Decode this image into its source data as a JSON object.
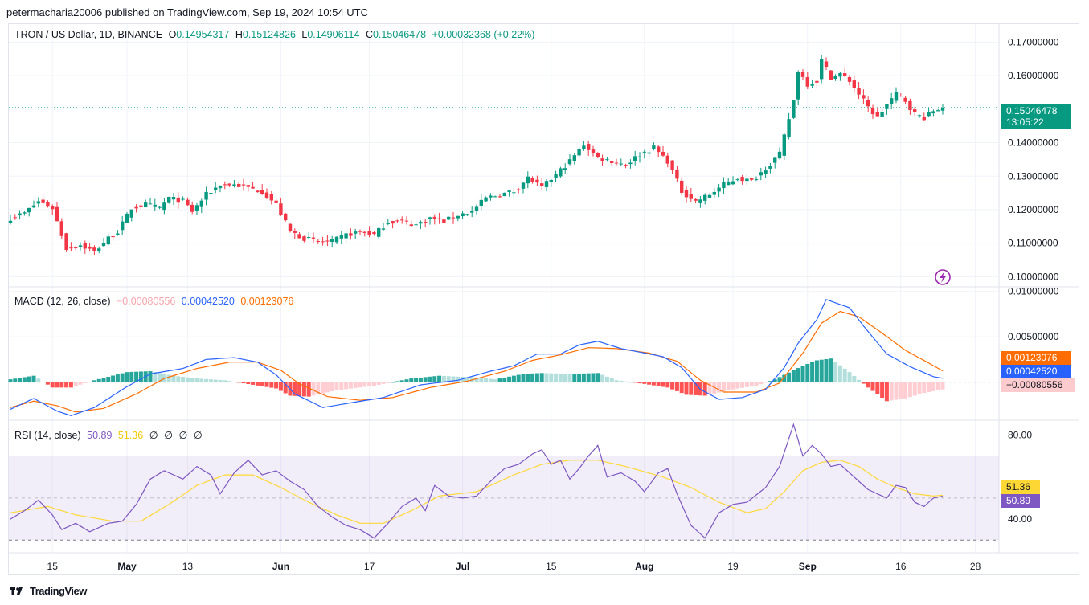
{
  "header": {
    "published": "petermacharia20006 published on TradingView.com, Sep 19, 2024 10:54 UTC"
  },
  "price_legend": {
    "symbol": "TRON / US Dollar, 1D, BINANCE",
    "o_label": "O",
    "o_value": "0.14954317",
    "h_label": "H",
    "h_value": "0.15124826",
    "l_label": "L",
    "l_value": "0.14906114",
    "c_label": "C",
    "c_value": "0.15046478",
    "change": "+0.00032368 (+0.22%)"
  },
  "macd_legend": {
    "title": "MACD (12, 26, close)",
    "hist": "−0.00080556",
    "macd": "0.00042520",
    "signal": "0.00123076"
  },
  "rsi_legend": {
    "title": "RSI (14, close)",
    "rsi": "50.89",
    "ma": "51.36",
    "extras": [
      "∅",
      "∅",
      "∅",
      "∅"
    ]
  },
  "current_price": {
    "value": "0.15046478",
    "countdown": "13:05:22"
  },
  "footer": {
    "brand": "TradingView"
  },
  "colors": {
    "up": "#089981",
    "down": "#f23645",
    "macd": "#2962ff",
    "signal": "#ff6d00",
    "rsi": "#7e57c2",
    "rsi_ma": "#fdd835"
  },
  "chart_data": [
    {
      "type": "candlestick",
      "title": "TRON / US Dollar, 1D, BINANCE",
      "ylim": [
        0.097,
        0.172
      ],
      "yticks": [
        "0.17000000",
        "0.16000000",
        "0.14000000",
        "0.13000000",
        "0.12000000",
        "0.11000000",
        "0.10000000"
      ],
      "ytick_values": [
        0.17,
        0.16,
        0.14,
        0.13,
        0.12,
        0.11,
        0.1
      ],
      "xticks": [
        "15",
        "May",
        "13",
        "Jun",
        "17",
        "Jul",
        "15",
        "Aug",
        "19",
        "Sep",
        "16",
        "28"
      ],
      "start_date": "2024-04-06",
      "close_anchors": [
        [
          0,
          0.1175
        ],
        [
          3,
          0.119
        ],
        [
          6,
          0.1225
        ],
        [
          9,
          0.1205
        ],
        [
          12,
          0.1085
        ],
        [
          15,
          0.1095
        ],
        [
          18,
          0.1075
        ],
        [
          21,
          0.1115
        ],
        [
          23,
          0.1135
        ],
        [
          26,
          0.1205
        ],
        [
          29,
          0.1215
        ],
        [
          32,
          0.1205
        ],
        [
          34,
          0.1235
        ],
        [
          37,
          0.1225
        ],
        [
          39,
          0.1195
        ],
        [
          42,
          0.1245
        ],
        [
          45,
          0.1275
        ],
        [
          48,
          0.1275
        ],
        [
          51,
          0.1265
        ],
        [
          54,
          0.1255
        ],
        [
          57,
          0.1215
        ],
        [
          60,
          0.1135
        ],
        [
          63,
          0.1115
        ],
        [
          66,
          0.1105
        ],
        [
          69,
          0.1105
        ],
        [
          72,
          0.1125
        ],
        [
          75,
          0.1135
        ],
        [
          78,
          0.1125
        ],
        [
          81,
          0.1165
        ],
        [
          84,
          0.1165
        ],
        [
          87,
          0.1155
        ],
        [
          90,
          0.1175
        ],
        [
          93,
          0.1165
        ],
        [
          96,
          0.1185
        ],
        [
          99,
          0.1195
        ],
        [
          102,
          0.1235
        ],
        [
          105,
          0.1245
        ],
        [
          108,
          0.1255
        ],
        [
          111,
          0.1295
        ],
        [
          114,
          0.1265
        ],
        [
          117,
          0.1305
        ],
        [
          120,
          0.1345
        ],
        [
          123,
          0.1395
        ],
        [
          126,
          0.1355
        ],
        [
          129,
          0.1345
        ],
        [
          132,
          0.1335
        ],
        [
          135,
          0.1365
        ],
        [
          138,
          0.1385
        ],
        [
          141,
          0.1345
        ],
        [
          144,
          0.1255
        ],
        [
          147,
          0.1225
        ],
        [
          150,
          0.1245
        ],
        [
          153,
          0.1275
        ],
        [
          156,
          0.1295
        ],
        [
          159,
          0.1285
        ],
        [
          162,
          0.1325
        ],
        [
          165,
          0.1365
        ],
        [
          168,
          0.1525
        ],
        [
          169,
          0.1615
        ],
        [
          171,
          0.1575
        ],
        [
          173,
          0.1585
        ],
        [
          174,
          0.1645
        ],
        [
          176,
          0.1595
        ],
        [
          178,
          0.1605
        ],
        [
          180,
          0.1585
        ],
        [
          182,
          0.1545
        ],
        [
          184,
          0.1505
        ],
        [
          186,
          0.1475
        ],
        [
          188,
          0.1515
        ],
        [
          190,
          0.1545
        ],
        [
          192,
          0.1525
        ],
        [
          194,
          0.1485
        ],
        [
          196,
          0.1475
        ],
        [
          198,
          0.1495
        ],
        [
          200,
          0.15046478
        ]
      ]
    },
    {
      "type": "macd",
      "title": "MACD (12, 26, close)",
      "ylim": [
        -0.0042,
        0.0105
      ],
      "yticks": [
        "0.01000000",
        "0.00500000"
      ],
      "ytick_values": [
        0.01,
        0.005
      ],
      "macd_anchors": [
        [
          0,
          -0.003
        ],
        [
          5,
          -0.0018
        ],
        [
          10,
          -0.0032
        ],
        [
          13,
          -0.0037
        ],
        [
          18,
          -0.0028
        ],
        [
          25,
          -0.0005
        ],
        [
          30,
          0.0009
        ],
        [
          37,
          0.0015
        ],
        [
          42,
          0.0025
        ],
        [
          48,
          0.0027
        ],
        [
          53,
          0.0022
        ],
        [
          57,
          0.0008
        ],
        [
          61,
          -0.0013
        ],
        [
          67,
          -0.0028
        ],
        [
          74,
          -0.0022
        ],
        [
          80,
          -0.0017
        ],
        [
          88,
          -0.0003
        ],
        [
          96,
          0.0002
        ],
        [
          103,
          0.0012
        ],
        [
          108,
          0.0018
        ],
        [
          113,
          0.0031
        ],
        [
          118,
          0.0031
        ],
        [
          122,
          0.0041
        ],
        [
          126,
          0.0045
        ],
        [
          131,
          0.0037
        ],
        [
          136,
          0.0032
        ],
        [
          140,
          0.0028
        ],
        [
          144,
          0.0016
        ],
        [
          148,
          -0.0008
        ],
        [
          152,
          -0.0019
        ],
        [
          157,
          -0.0017
        ],
        [
          162,
          -0.0008
        ],
        [
          166,
          0.0016
        ],
        [
          169,
          0.0043
        ],
        [
          173,
          0.0069
        ],
        [
          175,
          0.0091
        ],
        [
          180,
          0.0082
        ],
        [
          183,
          0.0062
        ],
        [
          188,
          0.0031
        ],
        [
          193,
          0.0017
        ],
        [
          198,
          0.0006
        ],
        [
          200,
          0.0004252
        ]
      ],
      "signal_anchors": [
        [
          0,
          -0.0028
        ],
        [
          5,
          -0.0021
        ],
        [
          10,
          -0.0026
        ],
        [
          14,
          -0.0033
        ],
        [
          20,
          -0.0029
        ],
        [
          27,
          -0.0013
        ],
        [
          33,
          0.0004
        ],
        [
          40,
          0.0015
        ],
        [
          47,
          0.0022
        ],
        [
          53,
          0.0022
        ],
        [
          58,
          0.0013
        ],
        [
          62,
          -0.0002
        ],
        [
          68,
          -0.0016
        ],
        [
          75,
          -0.002
        ],
        [
          82,
          -0.0017
        ],
        [
          90,
          -0.0006
        ],
        [
          98,
          0.0001
        ],
        [
          106,
          0.0012
        ],
        [
          112,
          0.0024
        ],
        [
          118,
          0.003
        ],
        [
          124,
          0.0038
        ],
        [
          130,
          0.0037
        ],
        [
          137,
          0.0032
        ],
        [
          143,
          0.0023
        ],
        [
          148,
          0.0002
        ],
        [
          153,
          -0.0011
        ],
        [
          160,
          -0.0011
        ],
        [
          165,
          -0.0001
        ],
        [
          170,
          0.0032
        ],
        [
          174,
          0.0065
        ],
        [
          178,
          0.0078
        ],
        [
          182,
          0.0072
        ],
        [
          187,
          0.0054
        ],
        [
          192,
          0.0035
        ],
        [
          197,
          0.0021
        ],
        [
          200,
          0.00123076
        ]
      ],
      "hist_anchors": [
        [
          0,
          0.0003
        ],
        [
          5,
          0.0007
        ],
        [
          9,
          -0.0006
        ],
        [
          13,
          -0.0006
        ],
        [
          18,
          0.0002
        ],
        [
          25,
          0.0011
        ],
        [
          30,
          0.0012
        ],
        [
          35,
          0.0007
        ],
        [
          40,
          0.0004
        ],
        [
          46,
          0.0002
        ],
        [
          52,
          -0.0003
        ],
        [
          57,
          -0.0007
        ],
        [
          60,
          -0.0015
        ],
        [
          64,
          -0.0016
        ],
        [
          70,
          -0.0009
        ],
        [
          78,
          -0.0004
        ],
        [
          86,
          0.0004
        ],
        [
          92,
          0.0007
        ],
        [
          100,
          0.0005
        ],
        [
          104,
          0.0003
        ],
        [
          110,
          0.0009
        ],
        [
          114,
          0.001
        ],
        [
          120,
          0.0009
        ],
        [
          126,
          0.001
        ],
        [
          130,
          0.0002
        ],
        [
          136,
          -0.0002
        ],
        [
          141,
          -0.0006
        ],
        [
          145,
          -0.0014
        ],
        [
          149,
          -0.0015
        ],
        [
          155,
          -0.0008
        ],
        [
          160,
          -0.0004
        ],
        [
          164,
          0.0003
        ],
        [
          170,
          0.0018
        ],
        [
          173,
          0.0024
        ],
        [
          176,
          0.0026
        ],
        [
          180,
          0.0011
        ],
        [
          184,
          -0.0006
        ],
        [
          188,
          -0.0021
        ],
        [
          192,
          -0.0018
        ],
        [
          196,
          -0.0012
        ],
        [
          200,
          -0.00080556
        ]
      ]
    },
    {
      "type": "rsi",
      "title": "RSI (14, close)",
      "ylim": [
        24,
        87
      ],
      "bands": [
        70,
        30
      ],
      "midline": 50,
      "yticks": [
        "80.00",
        "40.00"
      ],
      "ytick_values": [
        80,
        40
      ],
      "rsi_anchors": [
        [
          0,
          40
        ],
        [
          3,
          44
        ],
        [
          6,
          49
        ],
        [
          9,
          42
        ],
        [
          11,
          35
        ],
        [
          14,
          38
        ],
        [
          17,
          34
        ],
        [
          21,
          38
        ],
        [
          24,
          39
        ],
        [
          27,
          47
        ],
        [
          30,
          59
        ],
        [
          33,
          63
        ],
        [
          37,
          59
        ],
        [
          40,
          65
        ],
        [
          43,
          61
        ],
        [
          45,
          52
        ],
        [
          48,
          62
        ],
        [
          51,
          68
        ],
        [
          54,
          61
        ],
        [
          57,
          63
        ],
        [
          60,
          58
        ],
        [
          63,
          54
        ],
        [
          66,
          46
        ],
        [
          69,
          41
        ],
        [
          72,
          37
        ],
        [
          75,
          35
        ],
        [
          78,
          31
        ],
        [
          81,
          38
        ],
        [
          84,
          46
        ],
        [
          87,
          50
        ],
        [
          89,
          44
        ],
        [
          91,
          56
        ],
        [
          94,
          51
        ],
        [
          97,
          50
        ],
        [
          100,
          51
        ],
        [
          103,
          58
        ],
        [
          106,
          64
        ],
        [
          109,
          66
        ],
        [
          112,
          71
        ],
        [
          114,
          73
        ],
        [
          116,
          66
        ],
        [
          118,
          68
        ],
        [
          120,
          59
        ],
        [
          122,
          64
        ],
        [
          124,
          70
        ],
        [
          126,
          75
        ],
        [
          128,
          60
        ],
        [
          131,
          62
        ],
        [
          134,
          58
        ],
        [
          136,
          53
        ],
        [
          139,
          62
        ],
        [
          141,
          64
        ],
        [
          143,
          52
        ],
        [
          146,
          37
        ],
        [
          149,
          31
        ],
        [
          152,
          43
        ],
        [
          155,
          47
        ],
        [
          158,
          48
        ],
        [
          162,
          55
        ],
        [
          165,
          65
        ],
        [
          168,
          85
        ],
        [
          170,
          70
        ],
        [
          172,
          75
        ],
        [
          174,
          71
        ],
        [
          176,
          65
        ],
        [
          178,
          66
        ],
        [
          181,
          60
        ],
        [
          184,
          54
        ],
        [
          186,
          52
        ],
        [
          188,
          50
        ],
        [
          190,
          56
        ],
        [
          192,
          55
        ],
        [
          194,
          48
        ],
        [
          196,
          46
        ],
        [
          198,
          50
        ],
        [
          200,
          50.89
        ]
      ],
      "ma_anchors": [
        [
          0,
          43
        ],
        [
          8,
          46
        ],
        [
          14,
          42
        ],
        [
          22,
          39
        ],
        [
          28,
          39
        ],
        [
          34,
          47
        ],
        [
          40,
          56
        ],
        [
          46,
          61
        ],
        [
          52,
          61
        ],
        [
          58,
          55
        ],
        [
          64,
          48
        ],
        [
          70,
          42
        ],
        [
          75,
          38
        ],
        [
          80,
          38
        ],
        [
          86,
          44
        ],
        [
          92,
          51
        ],
        [
          100,
          53
        ],
        [
          108,
          61
        ],
        [
          114,
          66
        ],
        [
          120,
          68
        ],
        [
          126,
          68
        ],
        [
          132,
          65
        ],
        [
          140,
          60
        ],
        [
          146,
          55
        ],
        [
          152,
          48
        ],
        [
          158,
          43
        ],
        [
          162,
          45
        ],
        [
          166,
          53
        ],
        [
          170,
          63
        ],
        [
          174,
          67
        ],
        [
          178,
          68
        ],
        [
          182,
          65
        ],
        [
          186,
          59
        ],
        [
          190,
          55
        ],
        [
          194,
          52
        ],
        [
          198,
          51
        ],
        [
          200,
          51.36
        ]
      ]
    }
  ]
}
